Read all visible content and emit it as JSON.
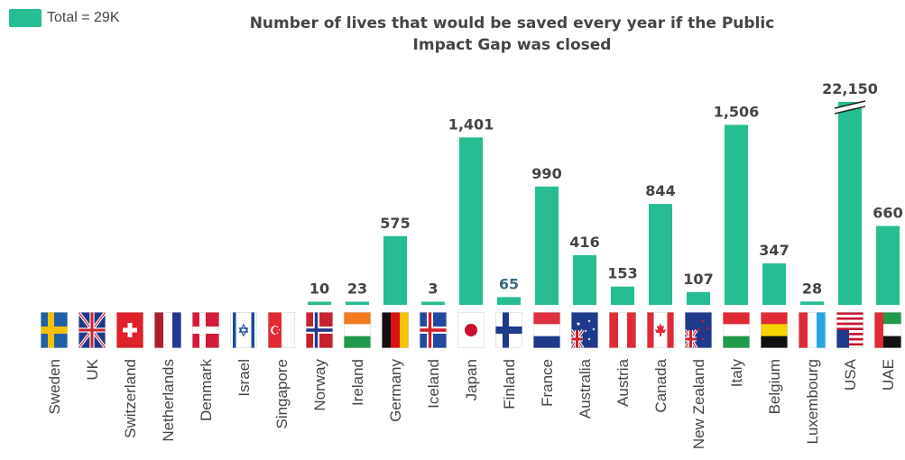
{
  "legend": {
    "label": "Total = 29K",
    "color": "#26bd92"
  },
  "chart_data": {
    "type": "bar",
    "title": "Number of lives that would be saved every year if the Public Impact Gap was closed",
    "categories": [
      "Sweden",
      "UK",
      "Switzerland",
      "Netherlands",
      "Denmark",
      "Israel",
      "Singapore",
      "Norway",
      "Ireland",
      "Germany",
      "Iceland",
      "Japan",
      "Finland",
      "France",
      "Australia",
      "Austria",
      "Canada",
      "New Zealand",
      "Italy",
      "Belgium",
      "Luxembourg",
      "USA",
      "UAE"
    ],
    "values": [
      null,
      null,
      null,
      null,
      null,
      null,
      null,
      10,
      23,
      575,
      3,
      1401,
      65,
      990,
      416,
      153,
      844,
      107,
      1506,
      347,
      28,
      22150,
      660
    ],
    "value_labels": [
      "",
      "",
      "",
      "",
      "",
      "",
      "",
      "10",
      "23",
      "575",
      "3",
      "1,401",
      "65",
      "990",
      "416",
      "153",
      "844",
      "107",
      "1,506",
      "347",
      "28",
      "22,150",
      "660"
    ],
    "label_colors": [
      "",
      "",
      "",
      "",
      "",
      "",
      "",
      "#444444",
      "#444444",
      "#444444",
      "#444444",
      "#444444",
      "#3b6c83",
      "#444444",
      "#444444",
      "#444444",
      "#444444",
      "#444444",
      "#444444",
      "#444444",
      "#444444",
      "#444444",
      "#444444"
    ],
    "broken_axis_category": "USA",
    "bar_color": "#26bd92",
    "ylim": [
      0,
      1600
    ]
  }
}
